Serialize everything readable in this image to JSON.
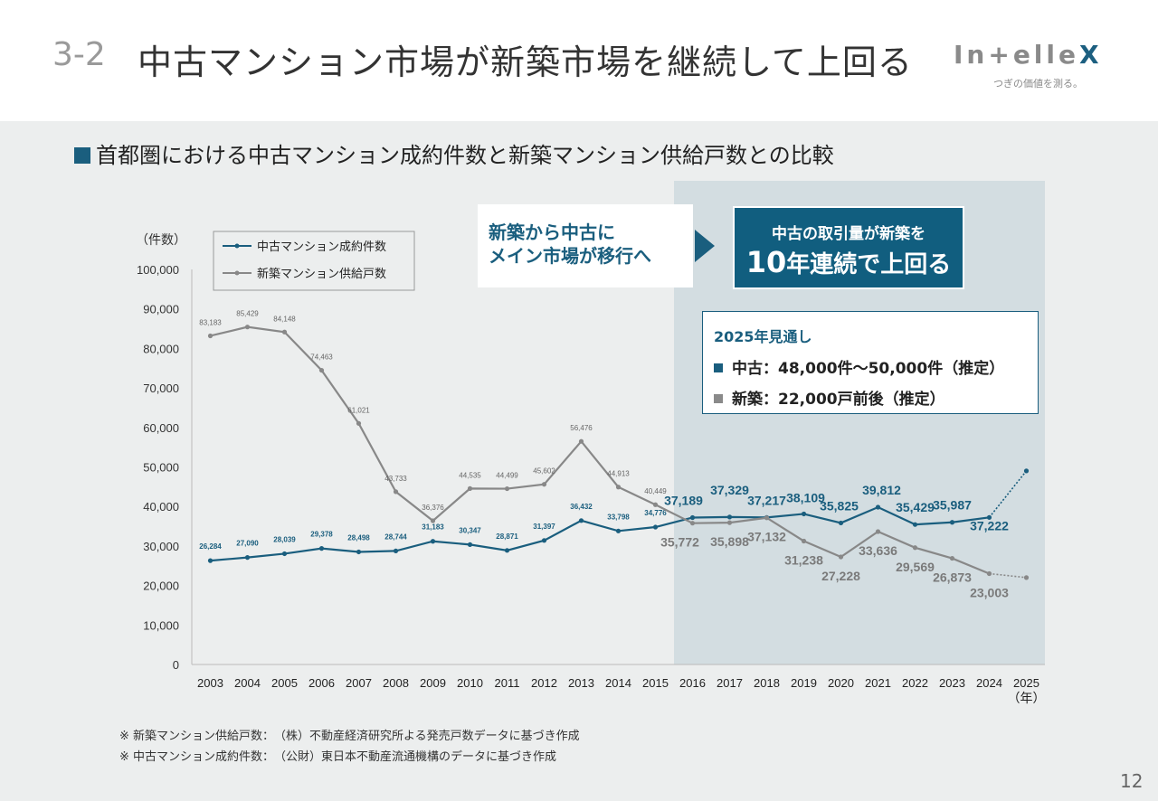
{
  "header": {
    "section_number": "3-2",
    "title": "中古マンション市場が新築市場を継続して上回る",
    "logo_text_pre": "In",
    "logo_text_mid": "+elle",
    "logo_text_x": "X",
    "logo_tagline": "つぎの価値を測る。"
  },
  "subtitle": "首都圏における中古マンション成約件数と新築マンション供給戸数との比較",
  "callouts": {
    "shift_line1": "新築から中古に",
    "shift_line2": "メイン市場が移行へ",
    "box_line1": "中古の取引量が新築を",
    "box_big": "10",
    "box_line2_rest": "年連続で上回る"
  },
  "outlook": {
    "heading": "2025年見通し",
    "used": "中古：48,000件～50,000件（推定）",
    "new": "新築：22,000戸前後（推定）"
  },
  "notes": [
    "※ 新築マンション供給戸数：　（株）不動産経済研究所よる発売戸数データに基づき作成",
    "※ 中古マンション成約件数：　（公財）東日本不動産流通機構のデータに基づき作成"
  ],
  "page_number": "12",
  "chart_data": {
    "type": "line",
    "ylabel": "（件数）",
    "xlabel": "（年）",
    "ylim": [
      0,
      100000
    ],
    "yticks": [
      "0",
      "10,000",
      "20,000",
      "30,000",
      "40,000",
      "50,000",
      "60,000",
      "70,000",
      "80,000",
      "90,000",
      "100,000"
    ],
    "categories": [
      "2003",
      "2004",
      "2005",
      "2006",
      "2007",
      "2008",
      "2009",
      "2010",
      "2011",
      "2012",
      "2013",
      "2014",
      "2015",
      "2016",
      "2017",
      "2018",
      "2019",
      "2020",
      "2021",
      "2022",
      "2023",
      "2024",
      "2025"
    ],
    "legend_position": "top-left",
    "highlight_from": "2016",
    "series": [
      {
        "name": "中古マンション成約件数",
        "color": "#1a5e7e",
        "values": [
          26284,
          27090,
          28039,
          29378,
          28498,
          28744,
          31183,
          30347,
          28871,
          31397,
          36432,
          33798,
          34776,
          37189,
          37329,
          37217,
          38109,
          35825,
          39812,
          35429,
          35987,
          37222,
          49000
        ],
        "labels": [
          "26,284",
          "27,090",
          "28,039",
          "29,378",
          "28,498",
          "28,744",
          "31,183",
          "30,347",
          "28,871",
          "31,397",
          "36,432",
          "33,798",
          "34,776",
          "37,189",
          "37,329",
          "37,217",
          "38,109",
          "35,825",
          "39,812",
          "35,429",
          "35,987",
          "37,222",
          ""
        ],
        "estimate_last": true
      },
      {
        "name": "新築マンション供給戸数",
        "color": "#888888",
        "values": [
          83183,
          85429,
          84148,
          74463,
          61021,
          43733,
          36376,
          44535,
          44499,
          45602,
          56476,
          44913,
          40449,
          35772,
          35898,
          37132,
          31238,
          27228,
          33636,
          29569,
          26873,
          23003,
          22000
        ],
        "labels": [
          "83,183",
          "85,429",
          "84,148",
          "74,463",
          "61,021",
          "43,733",
          "36,376",
          "44,535",
          "44,499",
          "45,602",
          "56,476",
          "44,913",
          "40,449",
          "35,772",
          "35,898",
          "37,132",
          "31,238",
          "27,228",
          "33,636",
          "29,569",
          "26,873",
          "23,003",
          ""
        ],
        "estimate_last": true
      }
    ]
  }
}
